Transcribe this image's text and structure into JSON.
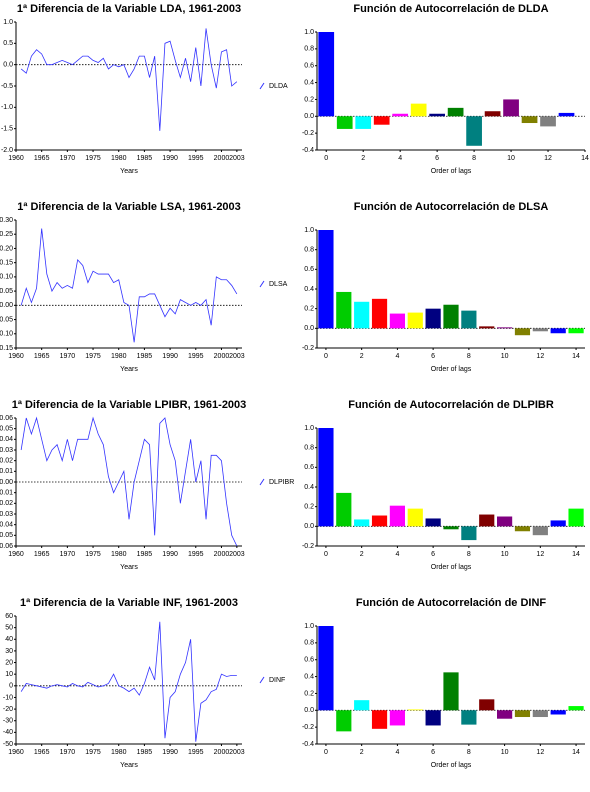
{
  "chart_data": [
    {
      "type": "line",
      "title": "1ª Diferencia de la Variable LDA, 1961-2003",
      "xlabel": "Years",
      "x": [
        1961,
        1962,
        1963,
        1964,
        1965,
        1966,
        1967,
        1968,
        1969,
        1970,
        1971,
        1972,
        1973,
        1974,
        1975,
        1976,
        1977,
        1978,
        1979,
        1980,
        1981,
        1982,
        1983,
        1984,
        1985,
        1986,
        1987,
        1988,
        1989,
        1990,
        1991,
        1992,
        1993,
        1994,
        1995,
        1996,
        1997,
        1998,
        1999,
        2000,
        2001,
        2002,
        2003
      ],
      "series": [
        {
          "name": "DLDA",
          "color": "#3333ff",
          "values": [
            -0.1,
            -0.2,
            0.2,
            0.35,
            0.25,
            0.0,
            0.0,
            0.05,
            0.1,
            0.05,
            0.0,
            0.1,
            0.2,
            0.2,
            0.1,
            0.05,
            0.15,
            -0.1,
            0.0,
            -0.05,
            0.0,
            -0.3,
            -0.1,
            0.2,
            0.2,
            -0.3,
            0.2,
            -1.55,
            0.5,
            0.55,
            0.1,
            -0.3,
            0.15,
            -0.4,
            0.4,
            -0.5,
            0.85,
            0.0,
            -0.55,
            0.3,
            0.35,
            -0.5,
            -0.4
          ]
        }
      ],
      "xlim": [
        1960,
        2004
      ],
      "ylim": [
        -2,
        1
      ],
      "xticks": [
        1960,
        1965,
        1970,
        1975,
        1980,
        1985,
        1990,
        1995,
        2000,
        2003
      ],
      "yticks": [
        {
          "value": 1,
          "label": "1.0"
        },
        0.5,
        {
          "value": 0,
          "label": "0.0"
        },
        -0.5,
        {
          "value": -1,
          "label": "-1.0"
        },
        -1.5,
        {
          "value": -2,
          "label": "-2.0"
        }
      ]
    },
    {
      "type": "bar",
      "title": "Función de Autocorrelación de DLDA",
      "xlabel": "Order of lags",
      "x": [
        0,
        1,
        2,
        3,
        4,
        5,
        6,
        7,
        8,
        9,
        10,
        11,
        12,
        13
      ],
      "values": [
        1.0,
        -0.15,
        -0.15,
        -0.1,
        0.03,
        0.15,
        0.03,
        0.1,
        -0.35,
        0.06,
        0.2,
        -0.08,
        -0.12,
        0.04
      ],
      "colors": [
        "#0000ff",
        "#00cc00",
        "#00ffff",
        "#ff0000",
        "#ff00ff",
        "#ffff00",
        "#000080",
        "#008000",
        "#008080",
        "#800000",
        "#800080",
        "#808000",
        "#808080",
        "#0000ff"
      ],
      "xlim": [
        -0.5,
        14
      ],
      "ylim": [
        -0.4,
        1
      ],
      "xticks": [
        0,
        2,
        4,
        6,
        8,
        10,
        12,
        14
      ],
      "yticks": [
        {
          "value": 1,
          "label": "1.0"
        },
        0.8,
        0.6,
        0.4,
        0.2,
        {
          "value": 0,
          "label": "0.0"
        },
        -0.2,
        -0.4
      ]
    },
    {
      "type": "line",
      "title": "1ª Diferencia de la Variable LSA, 1961-2003",
      "xlabel": "Years",
      "x": [
        1961,
        1962,
        1963,
        1964,
        1965,
        1966,
        1967,
        1968,
        1969,
        1970,
        1971,
        1972,
        1973,
        1974,
        1975,
        1976,
        1977,
        1978,
        1979,
        1980,
        1981,
        1982,
        1983,
        1984,
        1985,
        1986,
        1987,
        1988,
        1989,
        1990,
        1991,
        1992,
        1993,
        1994,
        1995,
        1996,
        1997,
        1998,
        1999,
        2000,
        2001,
        2002,
        2003
      ],
      "series": [
        {
          "name": "DLSA",
          "color": "#3333ff",
          "values": [
            0.0,
            0.06,
            0.01,
            0.06,
            0.27,
            0.11,
            0.05,
            0.08,
            0.06,
            0.07,
            0.06,
            0.16,
            0.14,
            0.08,
            0.12,
            0.11,
            0.11,
            0.11,
            0.08,
            0.09,
            0.01,
            0.0,
            -0.13,
            0.03,
            0.03,
            0.04,
            0.04,
            0.0,
            -0.04,
            -0.01,
            -0.03,
            0.02,
            0.01,
            0.0,
            0.01,
            0.0,
            0.02,
            -0.07,
            0.1,
            0.09,
            0.09,
            0.07,
            0.04
          ]
        }
      ],
      "xlim": [
        1960,
        2004
      ],
      "ylim": [
        -0.15,
        0.3
      ],
      "xticks": [
        1960,
        1965,
        1970,
        1975,
        1980,
        1985,
        1990,
        1995,
        2000,
        2003
      ],
      "yticks": [
        {
          "value": 0.3,
          "label": "0.30"
        },
        0.25,
        {
          "value": 0.2,
          "label": "0.20"
        },
        0.15,
        {
          "value": 0.1,
          "label": "0.10"
        },
        0.05,
        {
          "value": 0,
          "label": "0.00"
        },
        -0.05,
        {
          "value": -0.1,
          "label": "-0.10"
        },
        -0.15
      ]
    },
    {
      "type": "bar",
      "title": "Función de Autocorrelación de DLSA",
      "xlabel": "Order of lags",
      "x": [
        0,
        1,
        2,
        3,
        4,
        5,
        6,
        7,
        8,
        9,
        10,
        11,
        12,
        13,
        14
      ],
      "values": [
        1.0,
        0.37,
        0.27,
        0.3,
        0.15,
        0.16,
        0.2,
        0.24,
        0.18,
        0.02,
        0.01,
        -0.07,
        -0.03,
        -0.05,
        -0.05
      ],
      "colors": [
        "#0000ff",
        "#00cc00",
        "#00ffff",
        "#ff0000",
        "#ff00ff",
        "#ffff00",
        "#000080",
        "#008000",
        "#008080",
        "#800000",
        "#800080",
        "#808000",
        "#808080",
        "#0000ff",
        "#00ff00"
      ],
      "xlim": [
        -0.5,
        14.5
      ],
      "ylim": [
        -0.2,
        1
      ],
      "xticks": [
        0,
        2,
        4,
        6,
        8,
        10,
        12,
        14
      ],
      "yticks": [
        {
          "value": 1,
          "label": "1.0"
        },
        0.8,
        0.6,
        0.4,
        0.2,
        {
          "value": 0,
          "label": "0.0"
        },
        -0.2
      ]
    },
    {
      "type": "line",
      "title": "1ª Diferencia de la Variable LPIBR, 1961-2003",
      "xlabel": "Years",
      "x": [
        1961,
        1962,
        1963,
        1964,
        1965,
        1966,
        1967,
        1968,
        1969,
        1970,
        1971,
        1972,
        1973,
        1974,
        1975,
        1976,
        1977,
        1978,
        1979,
        1980,
        1981,
        1982,
        1983,
        1984,
        1985,
        1986,
        1987,
        1988,
        1989,
        1990,
        1991,
        1992,
        1993,
        1994,
        1995,
        1996,
        1997,
        1998,
        1999,
        2000,
        2001,
        2002,
        2003
      ],
      "series": [
        {
          "name": "DLPIBR",
          "color": "#3333ff",
          "values": [
            0.03,
            0.06,
            0.045,
            0.06,
            0.04,
            0.02,
            0.03,
            0.035,
            0.02,
            0.04,
            0.02,
            0.04,
            0.04,
            0.04,
            0.06,
            0.045,
            0.035,
            0.005,
            -0.01,
            0.0,
            0.01,
            -0.035,
            0.0,
            0.02,
            0.04,
            0.035,
            -0.05,
            0.055,
            0.06,
            0.035,
            0.02,
            -0.02,
            0.01,
            0.04,
            0.0,
            0.02,
            -0.035,
            0.025,
            0.025,
            0.02,
            -0.02,
            -0.05,
            -0.06
          ]
        }
      ],
      "xlim": [
        1960,
        2004
      ],
      "ylim": [
        -0.06,
        0.06
      ],
      "xticks": [
        1960,
        1965,
        1970,
        1975,
        1980,
        1985,
        1990,
        1995,
        2000,
        2003
      ],
      "yticks": [
        0.06,
        0.05,
        0.04,
        0.03,
        0.02,
        0.01,
        {
          "value": 0,
          "label": "0.00"
        },
        -0.01,
        -0.02,
        -0.03,
        -0.04,
        -0.05,
        -0.06
      ]
    },
    {
      "type": "bar",
      "title": "Función de Autocorrelación de DLPIBR",
      "xlabel": "Order of lags",
      "x": [
        0,
        1,
        2,
        3,
        4,
        5,
        6,
        7,
        8,
        9,
        10,
        11,
        12,
        13,
        14
      ],
      "values": [
        1.0,
        0.34,
        0.07,
        0.11,
        0.21,
        0.18,
        0.08,
        -0.03,
        -0.14,
        0.12,
        0.1,
        -0.05,
        -0.09,
        0.06,
        0.18
      ],
      "colors": [
        "#0000ff",
        "#00cc00",
        "#00ffff",
        "#ff0000",
        "#ff00ff",
        "#ffff00",
        "#000080",
        "#008000",
        "#008080",
        "#800000",
        "#800080",
        "#808000",
        "#808080",
        "#0000ff",
        "#00ff00"
      ],
      "xlim": [
        -0.5,
        14.5
      ],
      "ylim": [
        -0.2,
        1
      ],
      "xticks": [
        0,
        2,
        4,
        6,
        8,
        10,
        12,
        14
      ],
      "yticks": [
        {
          "value": 1,
          "label": "1.0"
        },
        0.8,
        0.6,
        0.4,
        0.2,
        {
          "value": 0,
          "label": "0.0"
        },
        -0.2
      ]
    },
    {
      "type": "line",
      "title": "1ª Diferencia de la Variable INF, 1961-2003",
      "xlabel": "Years",
      "x": [
        1961,
        1962,
        1963,
        1964,
        1965,
        1966,
        1967,
        1968,
        1969,
        1970,
        1971,
        1972,
        1973,
        1974,
        1975,
        1976,
        1977,
        1978,
        1979,
        1980,
        1981,
        1982,
        1983,
        1984,
        1985,
        1986,
        1987,
        1988,
        1989,
        1990,
        1991,
        1992,
        1993,
        1994,
        1995,
        1996,
        1997,
        1998,
        1999,
        2000,
        2001,
        2002,
        2003
      ],
      "series": [
        {
          "name": "DINF",
          "color": "#3333ff",
          "values": [
            -5,
            2,
            1,
            0,
            -1,
            -2,
            0,
            1,
            0,
            -1,
            2,
            0,
            -1,
            3,
            1,
            -1,
            0,
            2,
            10,
            0,
            -2,
            -5,
            -2,
            -8,
            2,
            16,
            5,
            55,
            -45,
            -10,
            -5,
            10,
            20,
            40,
            -48,
            -15,
            -12,
            -5,
            -3,
            10,
            8,
            9,
            9
          ]
        }
      ],
      "xlim": [
        1960,
        2004
      ],
      "ylim": [
        -50,
        60
      ],
      "xticks": [
        1960,
        1965,
        1970,
        1975,
        1980,
        1985,
        1990,
        1995,
        2000,
        2003
      ],
      "yticks": [
        60,
        50,
        40,
        30,
        20,
        10,
        0,
        -10,
        -20,
        -30,
        -40,
        -50
      ]
    },
    {
      "type": "bar",
      "title": "Función de Autocorrelación de DINF",
      "xlabel": "Order of lags",
      "x": [
        0,
        1,
        2,
        3,
        4,
        5,
        6,
        7,
        8,
        9,
        10,
        11,
        12,
        13,
        14
      ],
      "values": [
        1.0,
        -0.25,
        0.12,
        -0.22,
        -0.18,
        0.01,
        -0.18,
        0.45,
        -0.17,
        0.13,
        -0.1,
        -0.08,
        -0.08,
        -0.05,
        0.05
      ],
      "colors": [
        "#0000ff",
        "#00cc00",
        "#00ffff",
        "#ff0000",
        "#ff00ff",
        "#ffff00",
        "#000080",
        "#008000",
        "#008080",
        "#800000",
        "#800080",
        "#808000",
        "#808080",
        "#0000ff",
        "#00ff00"
      ],
      "xlim": [
        -0.5,
        14.5
      ],
      "ylim": [
        -0.4,
        1
      ],
      "xticks": [
        0,
        2,
        4,
        6,
        8,
        10,
        12,
        14
      ],
      "yticks": [
        {
          "value": 1,
          "label": "1.0"
        },
        0.8,
        0.6,
        0.4,
        0.2,
        {
          "value": 0,
          "label": "0.0"
        },
        -0.2,
        -0.4
      ]
    }
  ]
}
